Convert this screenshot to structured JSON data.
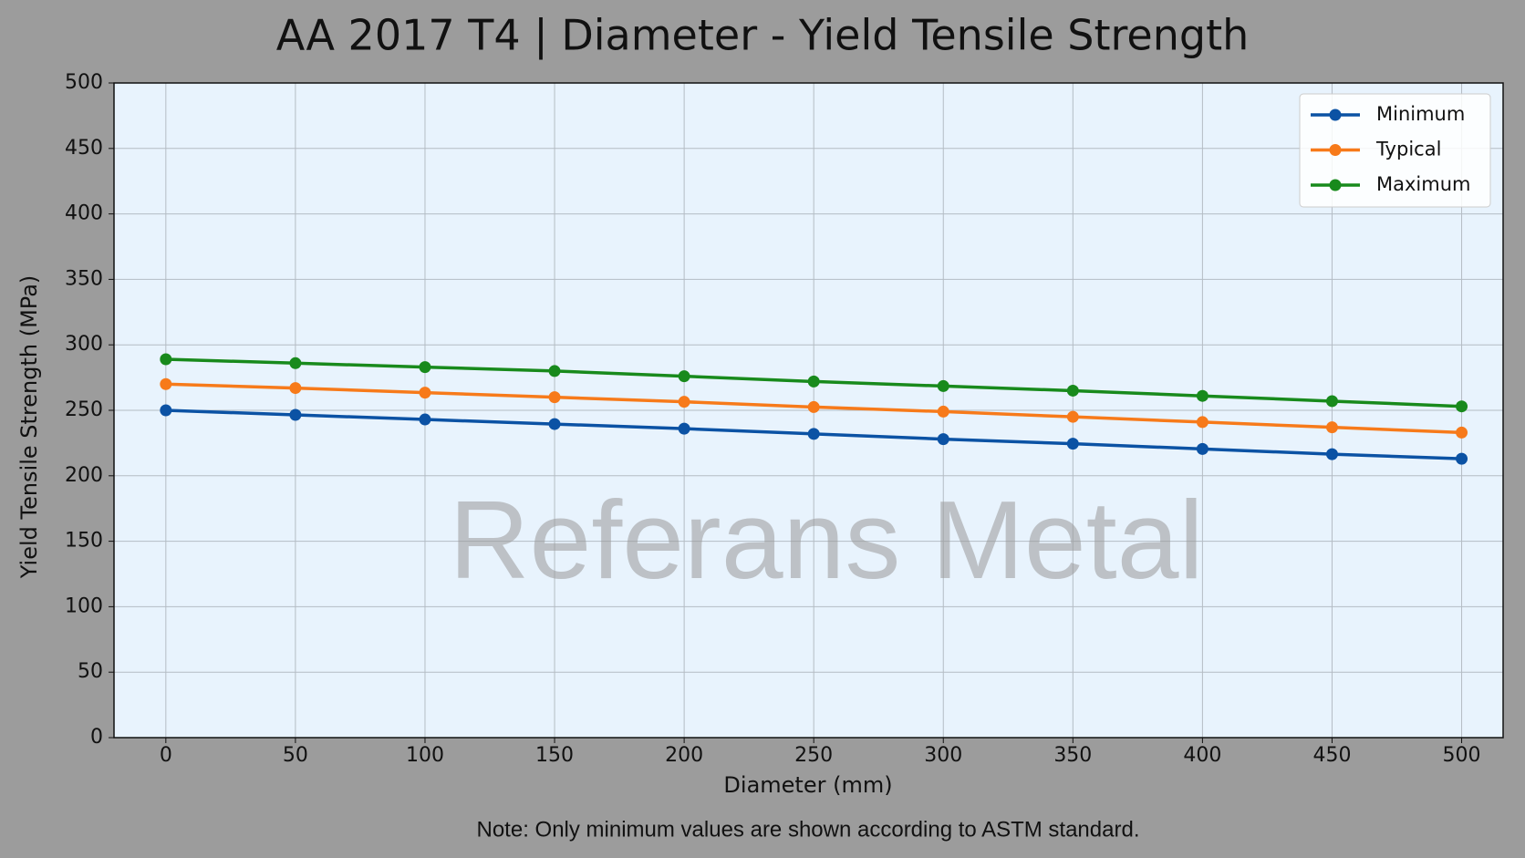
{
  "chart_data": {
    "type": "line",
    "title": "AA 2017 T4 | Diameter - Yield Tensile Strength",
    "xlabel": "Diameter (mm)",
    "ylabel": "Yield Tensile Strength (MPa)",
    "note": "Note: Only minimum values are shown according to ASTM standard.",
    "watermark": "Referans Metal",
    "x": [
      0,
      50,
      100,
      150,
      200,
      250,
      300,
      350,
      400,
      450,
      500
    ],
    "series": [
      {
        "name": "Minimum",
        "color": "#0b52a4",
        "values": [
          250,
          246.5,
          243,
          239.5,
          236,
          232,
          228,
          224.5,
          220.5,
          216.5,
          213
        ]
      },
      {
        "name": "Typical",
        "color": "#f77a1a",
        "values": [
          270,
          267,
          263.5,
          260,
          256.5,
          252.5,
          249,
          245,
          241,
          237,
          233
        ]
      },
      {
        "name": "Maximum",
        "color": "#188a1c",
        "values": [
          289,
          286,
          283,
          280,
          276,
          272,
          268.5,
          265,
          261,
          257,
          253
        ]
      }
    ],
    "xlim": [
      -20,
      516
    ],
    "xticks": [
      0,
      50,
      100,
      150,
      200,
      250,
      300,
      350,
      400,
      450,
      500
    ],
    "ylim": [
      0,
      500
    ],
    "yticks": [
      0,
      50,
      100,
      150,
      200,
      250,
      300,
      350,
      400,
      450,
      500
    ],
    "grid": true,
    "legend": "upper right"
  }
}
